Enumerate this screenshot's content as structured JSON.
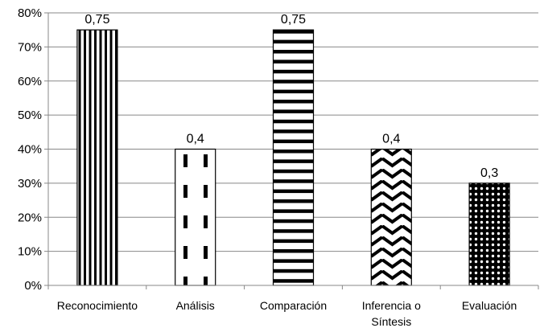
{
  "chart_data": {
    "type": "bar",
    "categories": [
      [
        "Reconocimiento"
      ],
      [
        "Análisis"
      ],
      [
        "Comparación"
      ],
      [
        "Inferencia o",
        "Síntesis"
      ],
      [
        "Evaluación"
      ]
    ],
    "values": [
      0.75,
      0.4,
      0.75,
      0.4,
      0.3
    ],
    "data_labels": [
      "0,75",
      "0,4",
      "0,75",
      "0,4",
      "0,3"
    ],
    "bar_patterns": [
      "vertical-stripes",
      "dashed-vertical",
      "horizontal-stripes",
      "chevrons",
      "dots"
    ],
    "ylim": [
      0,
      0.8
    ],
    "yticks": [
      {
        "value": 0,
        "label": "0%"
      },
      {
        "value": 0.1,
        "label": "10%"
      },
      {
        "value": 0.2,
        "label": "20%"
      },
      {
        "value": 0.3,
        "label": "30%"
      },
      {
        "value": 0.4,
        "label": "40%"
      },
      {
        "value": 0.5,
        "label": "50%"
      },
      {
        "value": 0.6,
        "label": "60%"
      },
      {
        "value": 0.7,
        "label": "70%"
      },
      {
        "value": 0.8,
        "label": "80%"
      }
    ],
    "grid": true,
    "legend": "none",
    "title": "",
    "xlabel": "",
    "ylabel": "",
    "colors": {
      "bar_fill": "#000000",
      "bar_background": "#ffffff",
      "grid": "#888888",
      "axis": "#888888"
    }
  }
}
